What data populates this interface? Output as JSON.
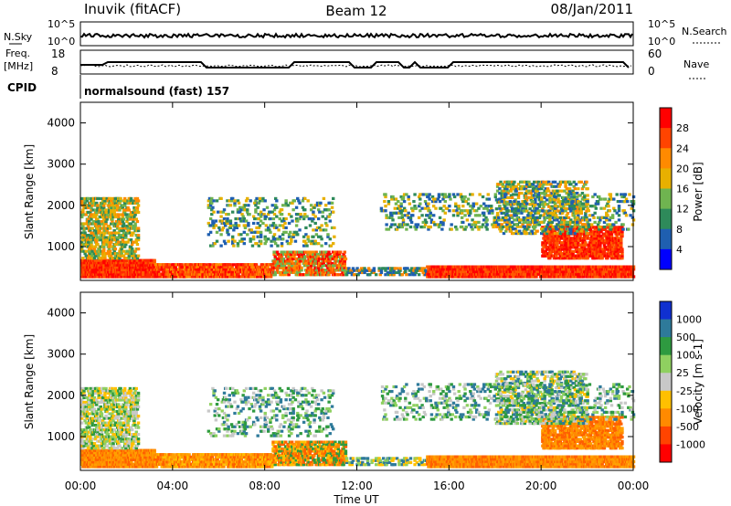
{
  "header": {
    "station": "Inuvik (fitACF)",
    "beam": "Beam 12",
    "date": "08/Jan/2011"
  },
  "top_panels": {
    "nsky_label": "N.Sky",
    "nsky_ticks": [
      "10^5",
      "10^0"
    ],
    "nsearch_label": "N.Search",
    "nsearch_ticks": [
      "10^5",
      "10^0"
    ],
    "freq_label": "Freq.",
    "freq_unit": "[MHz]",
    "freq_ticks": [
      "18",
      "8"
    ],
    "nave_label": "Nave",
    "nave_ticks": [
      "60",
      "0"
    ],
    "cpid_label": "CPID",
    "cpid_text": "normalsound (fast) 157"
  },
  "chart_data": [
    {
      "type": "heatmap",
      "name": "power",
      "ylabel": "Slant Range [km]",
      "yticks": [
        "4000",
        "3000",
        "2000",
        "1000"
      ],
      "ytick_values": [
        4000,
        3000,
        2000,
        1000
      ],
      "ylim": [
        180,
        4500
      ],
      "xlim": [
        0,
        24
      ],
      "colorbar": {
        "label": "Power [dB]",
        "ticks": [
          "28",
          "24",
          "20",
          "16",
          "12",
          "8",
          "4"
        ],
        "colors": [
          "#ff0000",
          "#ff4400",
          "#ff8a00",
          "#e8b000",
          "#6fb450",
          "#2e8a5a",
          "#1f5fb0",
          "#0000ff"
        ]
      }
    },
    {
      "type": "heatmap",
      "name": "velocity",
      "ylabel": "Slant Range [km]",
      "yticks": [
        "4000",
        "3000",
        "2000",
        "1000"
      ],
      "ytick_values": [
        4000,
        3000,
        2000,
        1000
      ],
      "ylim": [
        180,
        4500
      ],
      "xlim": [
        0,
        24
      ],
      "xticks": [
        "00:00",
        "04:00",
        "08:00",
        "12:00",
        "16:00",
        "20:00",
        "00:00"
      ],
      "xtick_values": [
        0,
        4,
        8,
        12,
        16,
        20,
        24
      ],
      "xlabel": "Time UT",
      "colorbar": {
        "label": "Velocity [m s-1]",
        "ticks": [
          "1000",
          "500",
          "100",
          "25",
          "-25",
          "-100",
          "-500",
          "-1000"
        ],
        "colors": [
          "#1030d0",
          "#2e7a9a",
          "#2e9a40",
          "#8fd060",
          "#c8c8c8",
          "#ffc000",
          "#ff8a00",
          "#ff4400",
          "#ff0000"
        ]
      }
    }
  ]
}
